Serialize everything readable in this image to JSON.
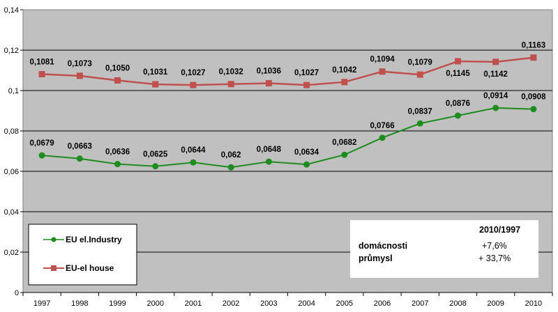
{
  "chart_data": {
    "type": "line",
    "x": [
      "1997",
      "1998",
      "1999",
      "2000",
      "2001",
      "2002",
      "2003",
      "2004",
      "2005",
      "2006",
      "2007",
      "2008",
      "2009",
      "2010"
    ],
    "ylim": [
      0,
      0.14
    ],
    "yticks": [
      "0",
      "0,02",
      "0,04",
      "0,06",
      "0,08",
      "0,1",
      "0,12",
      "0,14"
    ],
    "yticks_values": [
      0,
      0.02,
      0.04,
      0.06,
      0.08,
      0.1,
      0.12,
      0.14
    ],
    "grid": "horizontal",
    "plot_background": "#c0c0c0",
    "legend_placement": "bottom-left",
    "series": [
      {
        "name": "EU el.Industry",
        "color": "#1e8c1e",
        "marker": "circle",
        "values": [
          0.0679,
          0.0663,
          0.0636,
          0.0625,
          0.0644,
          0.062,
          0.0648,
          0.0634,
          0.0682,
          0.0766,
          0.0837,
          0.0876,
          0.0914,
          0.0908
        ],
        "labels": [
          "0,0679",
          "0,0663",
          "0,0636",
          "0,0625",
          "0,0644",
          "0,062",
          "0,0648",
          "0,0634",
          "0,0682",
          "0,0766",
          "0,0837",
          "0,0876",
          "0,0914",
          "0,0908"
        ]
      },
      {
        "name": "EU-el house",
        "color": "#c0504d",
        "marker": "square",
        "values": [
          0.1081,
          0.1073,
          0.105,
          0.1031,
          0.1027,
          0.1032,
          0.1036,
          0.1027,
          0.1042,
          0.1094,
          0.1079,
          0.1145,
          0.1142,
          0.1163
        ],
        "labels": [
          "0,1081",
          "0,1073",
          "0,1050",
          "0,1031",
          "0,1027",
          "0,1032",
          "0,1036",
          "0,1027",
          "0,1042",
          "0,1094",
          "0,1079",
          "0,1145",
          "0,1142",
          "0,1163"
        ]
      }
    ],
    "annotation": {
      "header": "2010/1997",
      "rows": [
        {
          "label": "domácnosti",
          "value": "+7,6%"
        },
        {
          "label": "průmysl",
          "value": "+ 33,7%"
        }
      ]
    }
  }
}
